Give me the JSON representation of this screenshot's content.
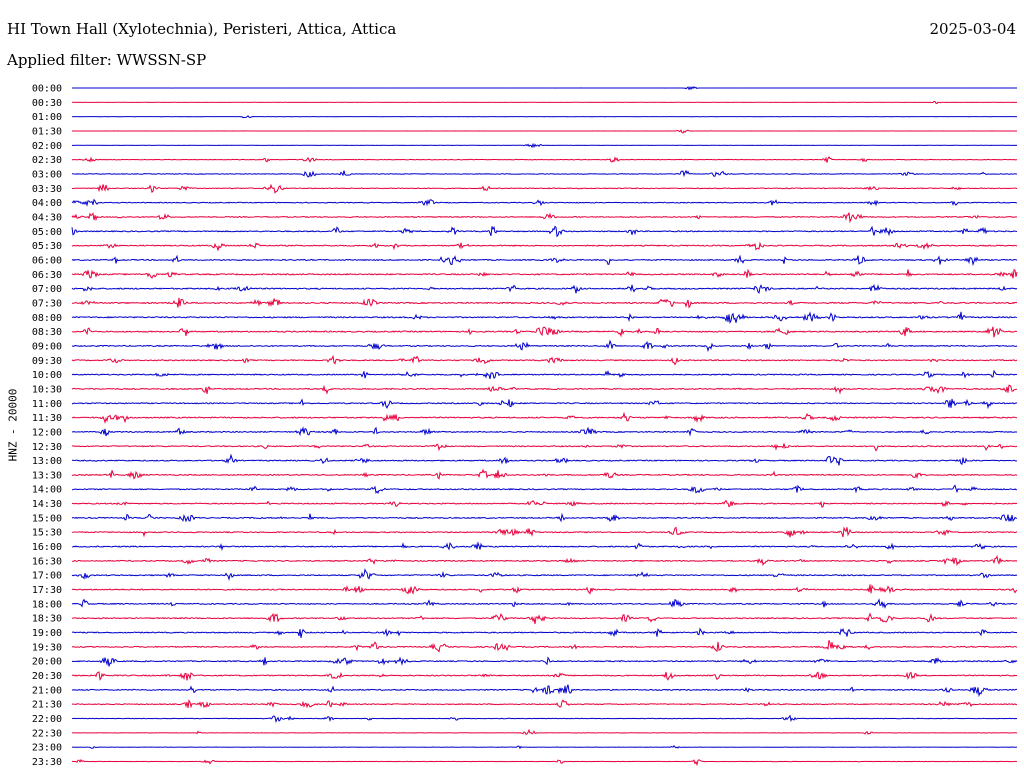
{
  "header": {
    "title": "HI Town Hall (Xylotechnia), Peristeri, Attica, Attica",
    "date": "2025-03-04",
    "filter": "Applied filter: WWSSN-SP"
  },
  "colors": {
    "odd_row": "#0000cc",
    "even_row": "#e8003c"
  },
  "chart_data": {
    "type": "line",
    "title": "HI Town Hall (Xylotechnia), Peristeri, Attica, Attica",
    "subtitle": "Applied filter: WWSSN-SP",
    "ylabel": "HNZ - 20000",
    "xlabel": "",
    "rows": [
      "00:00",
      "00:30",
      "01:00",
      "01:30",
      "02:00",
      "02:30",
      "03:00",
      "03:30",
      "04:00",
      "04:30",
      "05:00",
      "05:30",
      "06:00",
      "06:30",
      "07:00",
      "07:30",
      "08:00",
      "08:30",
      "09:00",
      "09:30",
      "10:00",
      "10:30",
      "11:00",
      "11:30",
      "12:00",
      "12:30",
      "13:00",
      "13:30",
      "14:00",
      "14:30",
      "15:00",
      "15:30",
      "16:00",
      "16:30",
      "17:00",
      "17:30",
      "18:00",
      "18:30",
      "19:00",
      "19:30",
      "20:00",
      "20:30",
      "21:00",
      "21:30",
      "22:00",
      "22:30",
      "23:00",
      "23:30"
    ],
    "activity": [
      0.1,
      0.1,
      0.1,
      0.1,
      0.1,
      0.4,
      0.5,
      0.6,
      0.6,
      0.7,
      0.8,
      0.8,
      0.8,
      0.9,
      0.9,
      0.9,
      0.9,
      0.9,
      0.8,
      0.8,
      0.8,
      0.8,
      0.8,
      0.9,
      0.8,
      0.8,
      0.8,
      0.8,
      0.8,
      0.8,
      0.8,
      0.8,
      0.8,
      0.8,
      0.8,
      0.8,
      0.8,
      0.8,
      0.8,
      0.8,
      0.8,
      0.8,
      0.8,
      0.7,
      0.4,
      0.2,
      0.2,
      0.3
    ]
  }
}
